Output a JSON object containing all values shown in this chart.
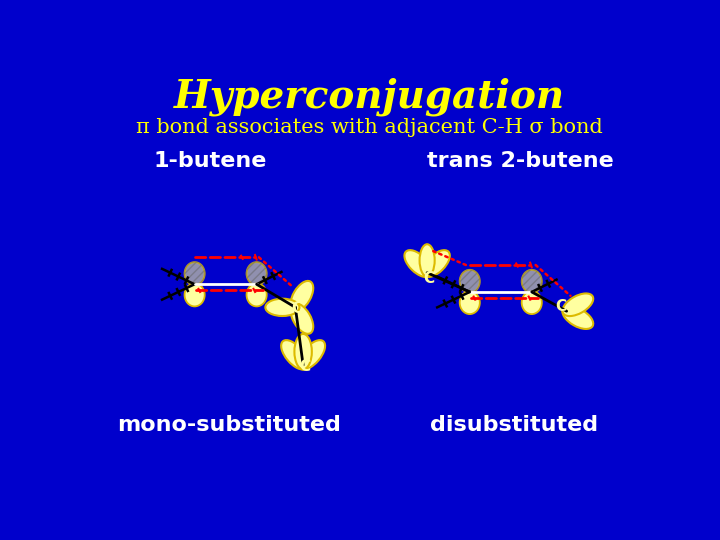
{
  "title": "Hyperconjugation",
  "subtitle": "π bond associates with adjacent C-H σ bond",
  "bg_color": "#0000CC",
  "title_color": "#FFFF00",
  "subtitle_color": "#FFFF00",
  "label_color": "#FFFF00",
  "white_color": "#FFFFFF",
  "orbital_fill": "#FFFFA0",
  "orbital_edge": "#DDBB00",
  "hatch_color": "#AAAAAA",
  "bond_color": "#000000",
  "dashed_color": "#FF0000",
  "label1": "1-butene",
  "label2": "trans 2-butene",
  "label3": "mono-substituted",
  "label4": "disubstituted",
  "title_fontsize": 28,
  "subtitle_fontsize": 15,
  "label_fontsize": 16
}
